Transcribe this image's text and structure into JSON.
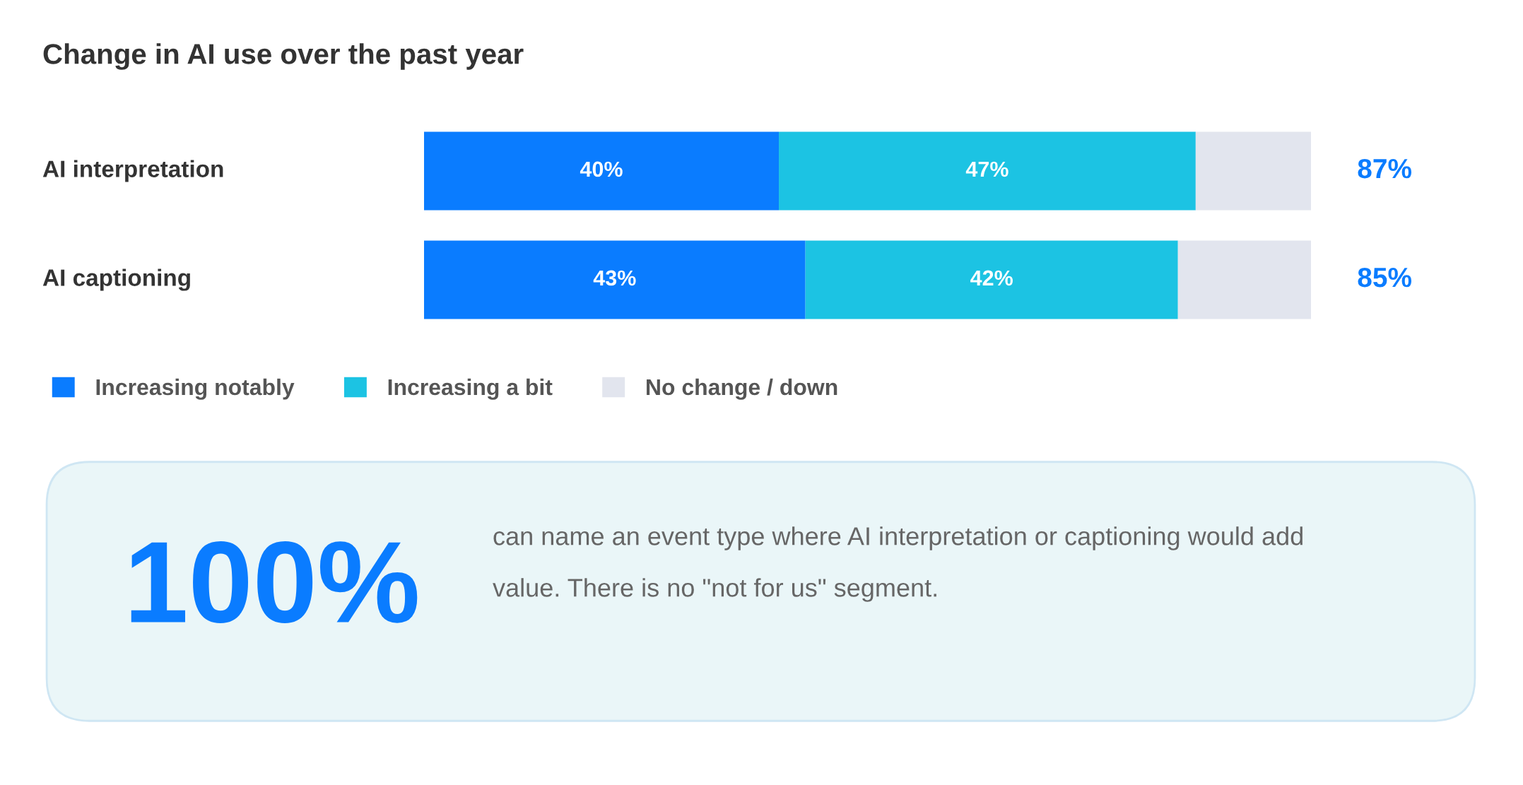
{
  "chart_data": [
    {
      "type": "bar",
      "title": "Change in AI use over the past year",
      "orientation": "horizontal",
      "stacked": true,
      "categories": [
        "AI interpretation",
        "AI captioning"
      ],
      "xlim": [
        0,
        100
      ],
      "tick_labels": false,
      "grid": false,
      "legend": "bottom",
      "series": [
        {
          "name": "Increasing notably",
          "color": "#0a7cff",
          "values": [
            40,
            43
          ],
          "value_labels": [
            "40%",
            "43%"
          ]
        },
        {
          "name": "Increasing a bit",
          "color": "#1cc3e3",
          "values": [
            47,
            42
          ],
          "value_labels": [
            "47%",
            "42%"
          ]
        },
        {
          "name": "No change / down",
          "color": "#e2e5ee",
          "values": [
            13,
            15
          ],
          "value_labels": [
            null,
            null
          ]
        }
      ],
      "annotations": [
        "87%",
        "85%"
      ]
    },
    {
      "type": "other",
      "title": "100%",
      "annotations": [
        "can name an event type where AI interpretation or captioning would add value. There is no \"not for us\" segment."
      ]
    }
  ]
}
